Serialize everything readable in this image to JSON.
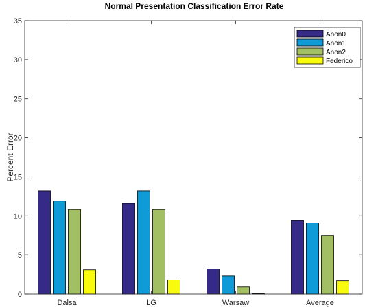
{
  "chart_data": {
    "type": "bar",
    "title": "Normal Presentation Classification Error Rate",
    "xlabel": "",
    "ylabel": "Percent Error",
    "ylim": [
      0,
      35
    ],
    "yticks": [
      0,
      5,
      10,
      15,
      20,
      25,
      30,
      35
    ],
    "categories": [
      "Dalsa",
      "LG",
      "Warsaw",
      "Average"
    ],
    "series": [
      {
        "name": "Anon0",
        "color": "#352a87",
        "values": [
          13.2,
          11.6,
          3.2,
          9.4
        ]
      },
      {
        "name": "Anon1",
        "color": "#0f9bd7",
        "values": [
          11.9,
          13.2,
          2.3,
          9.1
        ]
      },
      {
        "name": "Anon2",
        "color": "#a3bf64",
        "values": [
          10.8,
          10.8,
          0.9,
          7.5
        ]
      },
      {
        "name": "Federico",
        "color": "#f9fb0e",
        "values": [
          3.1,
          1.8,
          0.05,
          1.7
        ]
      }
    ],
    "legend_position": "top-right",
    "grid": false
  }
}
